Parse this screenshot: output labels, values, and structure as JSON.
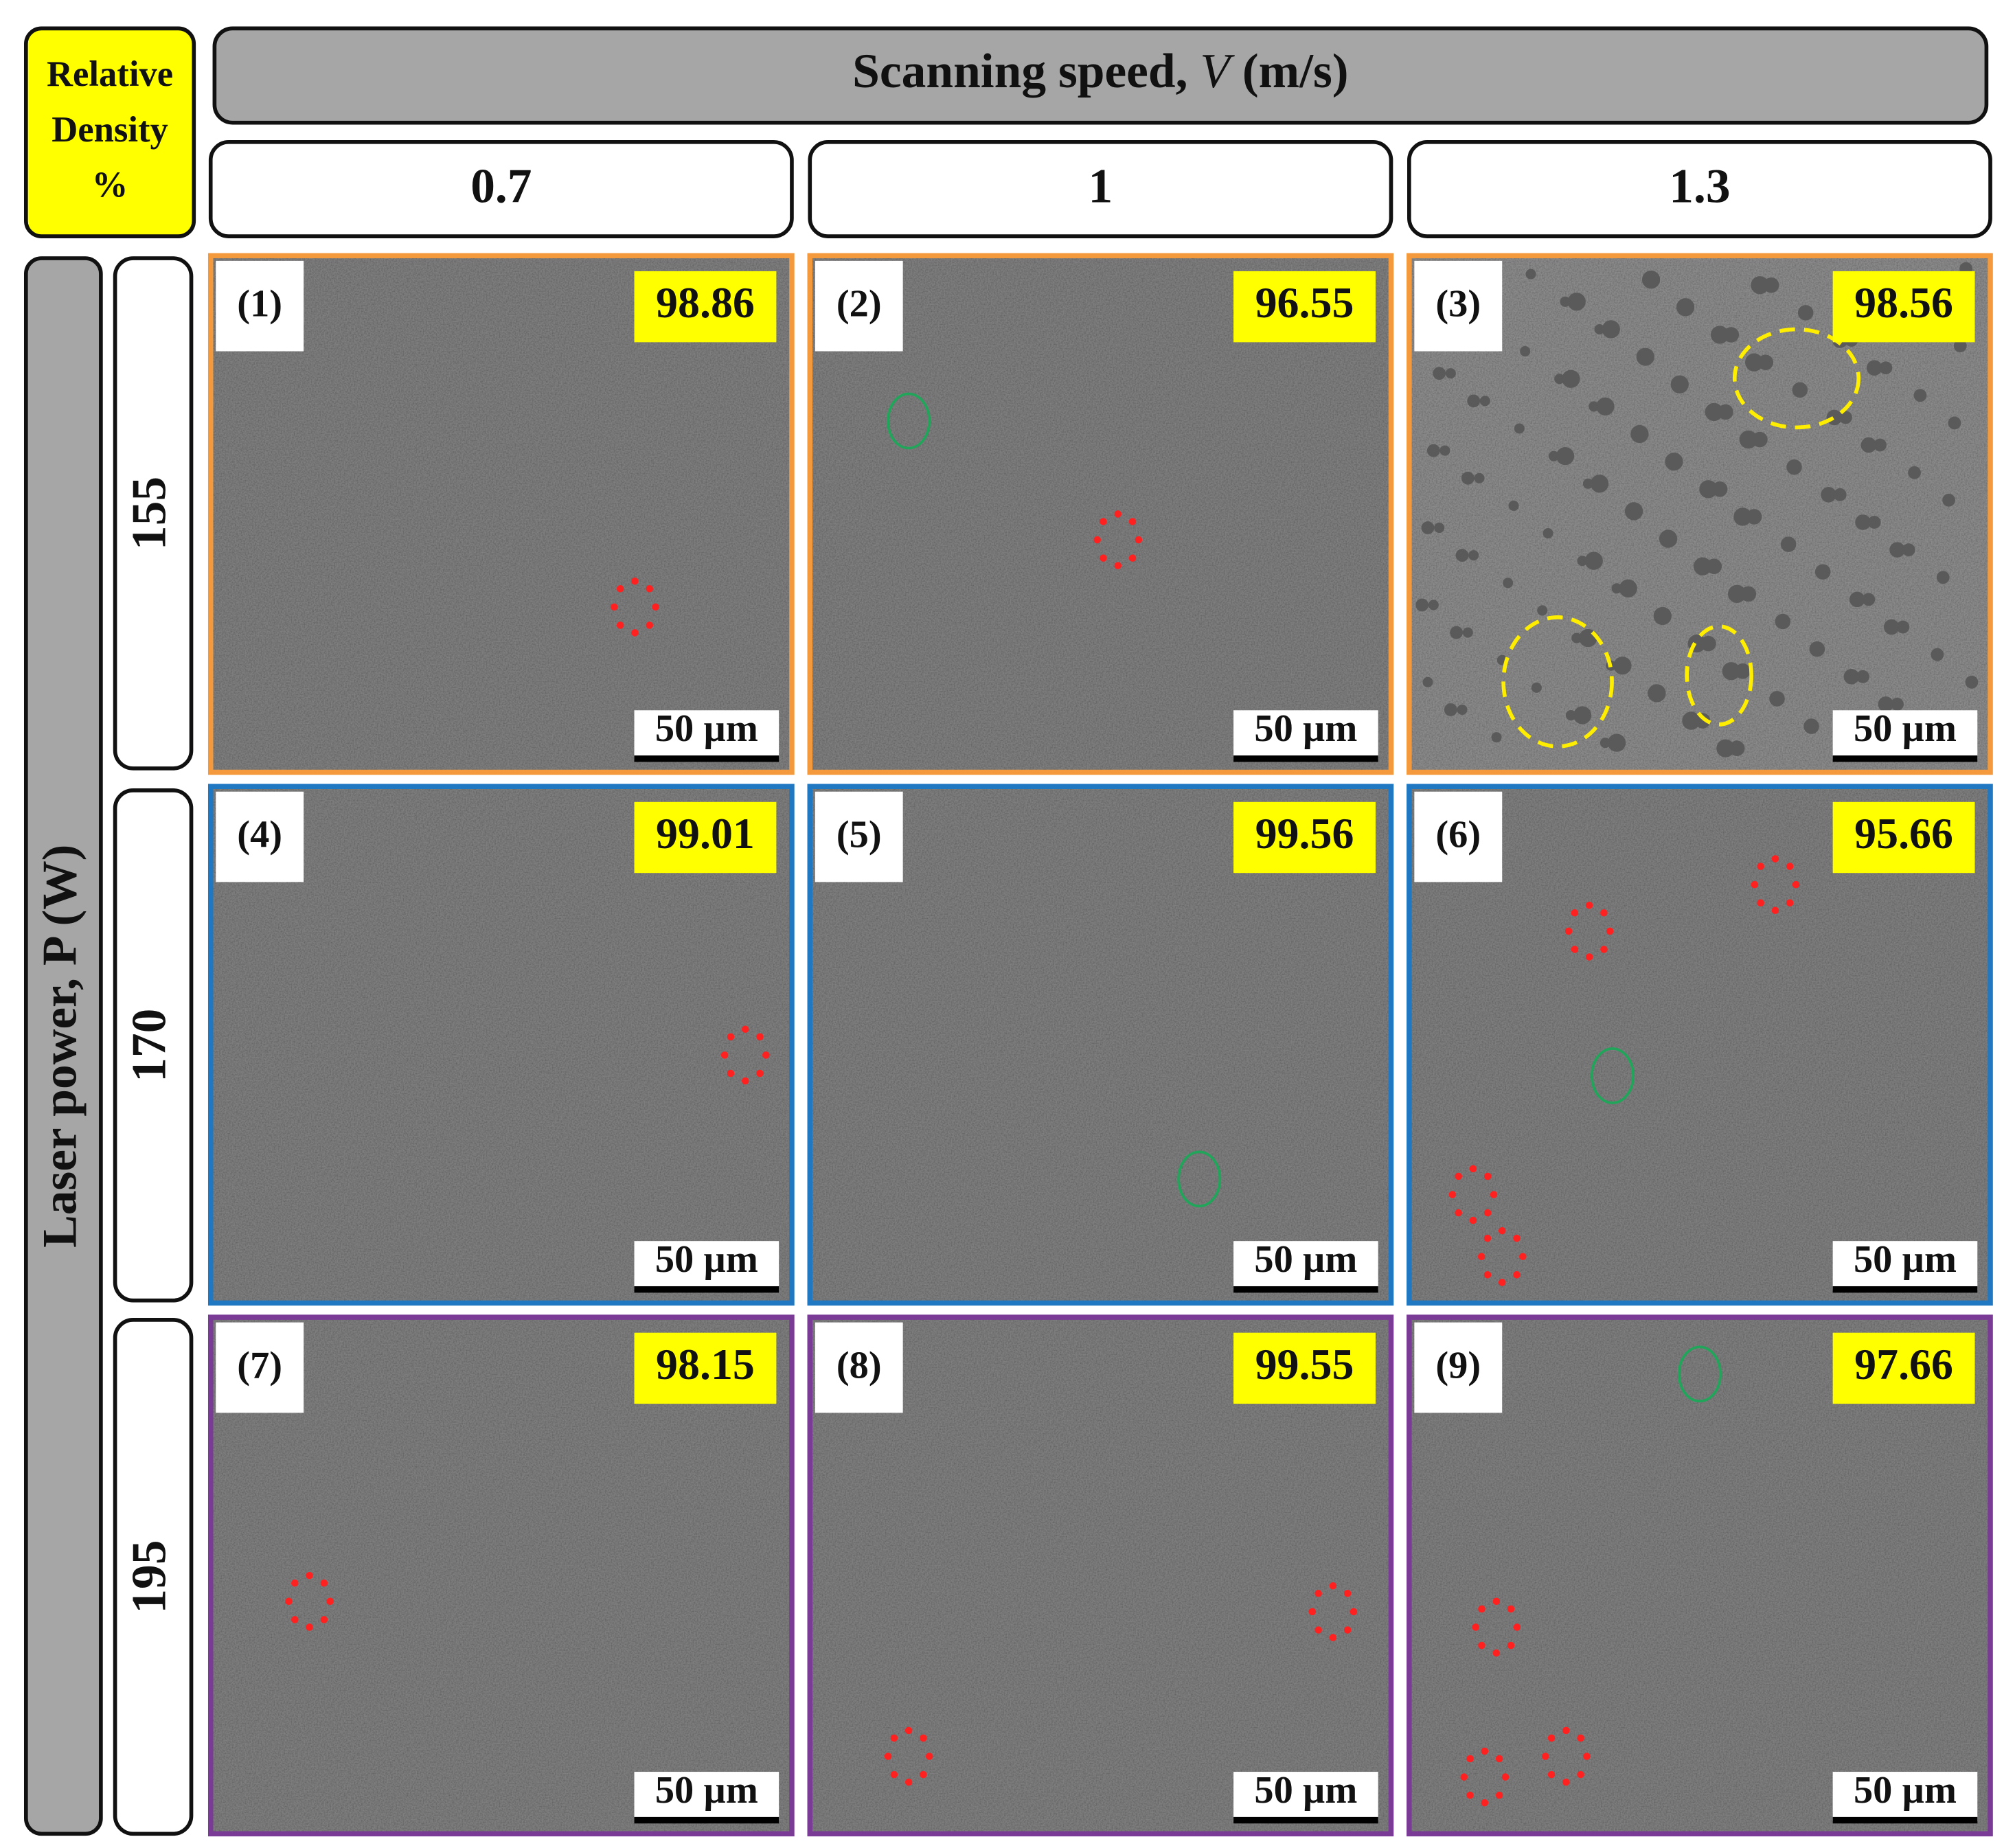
{
  "corner_label": {
    "lines": [
      "Relative",
      "Density",
      "%"
    ]
  },
  "column_header": {
    "prefix": "Scanning speed,",
    "variable": "V",
    "unit": "(m/s)",
    "values": [
      "0.7",
      "1",
      "1.3"
    ]
  },
  "row_header": {
    "title": "Laser power, P (W)",
    "values": [
      "155",
      "170",
      "195"
    ]
  },
  "panels": [
    {
      "label": "(1)",
      "density": "98.86",
      "scale_bar": "50 µm"
    },
    {
      "label": "(2)",
      "density": "96.55",
      "scale_bar": "50 µm"
    },
    {
      "label": "(3)",
      "density": "98.56",
      "scale_bar": "50 µm"
    },
    {
      "label": "(4)",
      "density": "99.01",
      "scale_bar": "50 µm"
    },
    {
      "label": "(5)",
      "density": "99.56",
      "scale_bar": "50 µm"
    },
    {
      "label": "(6)",
      "density": "95.66",
      "scale_bar": "50 µm"
    },
    {
      "label": "(7)",
      "density": "98.15",
      "scale_bar": "50 µm"
    },
    {
      "label": "(8)",
      "density": "99.55",
      "scale_bar": "50 µm"
    },
    {
      "label": "(9)",
      "density": "97.66",
      "scale_bar": "50 µm"
    }
  ]
}
